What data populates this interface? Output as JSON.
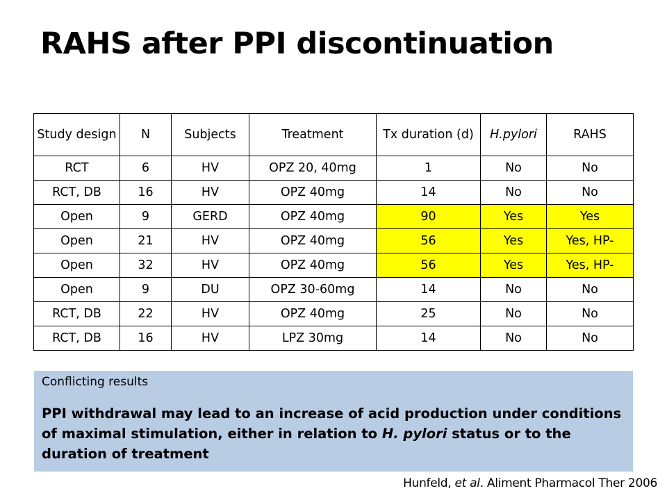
{
  "slide": {
    "title": "RAHS after PPI discontinuation"
  },
  "table": {
    "headers": [
      "Study design",
      "N",
      "Subjects",
      "Treatment",
      "Tx duration (d)",
      "H.pylori",
      "RAHS"
    ],
    "rows": [
      [
        "RCT",
        "6",
        "HV",
        "OPZ 20, 40mg",
        "1",
        "No",
        "No"
      ],
      [
        "RCT, DB",
        "16",
        "HV",
        "OPZ 40mg",
        "14",
        "No",
        "No"
      ],
      [
        "Open",
        "9",
        "GERD",
        "OPZ 40mg",
        "90",
        "Yes",
        "Yes"
      ],
      [
        "Open",
        "21",
        "HV",
        "OPZ 40mg",
        "56",
        "Yes",
        "Yes, HP-"
      ],
      [
        "Open",
        "32",
        "HV",
        "OPZ 40mg",
        "56",
        "Yes",
        "Yes, HP-"
      ],
      [
        "Open",
        "9",
        "DU",
        "OPZ 30-60mg",
        "14",
        "No",
        "No"
      ],
      [
        "RCT, DB",
        "22",
        "HV",
        "OPZ 40mg",
        "25",
        "No",
        "No"
      ],
      [
        "RCT, DB",
        "16",
        "HV",
        "LPZ 30mg",
        "14",
        "No",
        "No"
      ]
    ],
    "highlight_color": "#ffff00"
  },
  "note": {
    "subtitle": "Conflicting results",
    "text_part1": "PPI withdrawal may lead to an increase of acid production under conditions of maximal stimulation, either in relation to ",
    "text_italic": "H. pylori",
    "text_part2": " status or to the duration of treatment",
    "background_color": "#b8cce4"
  },
  "citation": {
    "author": "Hunfeld, ",
    "etal": "et al",
    "rest": ". Aliment Pharmacol Ther 2006"
  }
}
